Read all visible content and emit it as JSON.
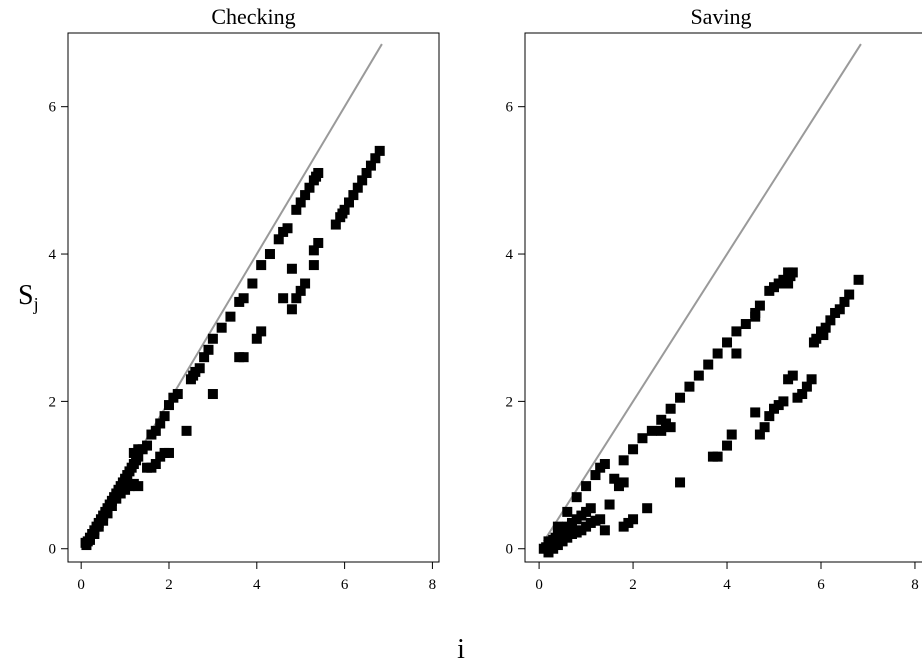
{
  "chart_data": [
    {
      "type": "scatter",
      "title": "Checking",
      "xlabel": "i",
      "ylabel": "S",
      "ylabel_subscript": "j",
      "xlim": [
        -0.3,
        8.15
      ],
      "ylim": [
        -0.18,
        7.0
      ],
      "xticks": [
        0,
        2,
        4,
        6,
        8
      ],
      "yticks": [
        0,
        2,
        4,
        6
      ],
      "reference_line": {
        "x": [
          0.1,
          6.85
        ],
        "y": [
          0.1,
          6.85
        ]
      },
      "series": [
        {
          "points": [
            [
              0.1,
              0.08
            ],
            [
              0.15,
              0.1
            ],
            [
              0.2,
              0.15
            ],
            [
              0.25,
              0.2
            ],
            [
              0.3,
              0.25
            ],
            [
              0.35,
              0.3
            ],
            [
              0.4,
              0.35
            ],
            [
              0.45,
              0.4
            ],
            [
              0.5,
              0.45
            ],
            [
              0.55,
              0.5
            ],
            [
              0.6,
              0.55
            ],
            [
              0.65,
              0.6
            ],
            [
              0.7,
              0.65
            ],
            [
              0.75,
              0.7
            ],
            [
              0.8,
              0.75
            ],
            [
              0.85,
              0.8
            ],
            [
              0.9,
              0.85
            ],
            [
              0.95,
              0.9
            ],
            [
              1.0,
              0.95
            ],
            [
              1.05,
              1.0
            ],
            [
              1.1,
              1.05
            ],
            [
              1.15,
              1.1
            ],
            [
              1.2,
              1.15
            ],
            [
              1.25,
              1.2
            ],
            [
              1.3,
              1.25
            ],
            [
              0.12,
              0.05
            ],
            [
              0.2,
              0.12
            ],
            [
              0.3,
              0.2
            ],
            [
              0.4,
              0.3
            ],
            [
              0.5,
              0.38
            ],
            [
              0.6,
              0.48
            ],
            [
              0.7,
              0.58
            ],
            [
              0.8,
              0.68
            ],
            [
              0.9,
              0.75
            ],
            [
              1.0,
              0.8
            ],
            [
              1.1,
              0.85
            ],
            [
              1.2,
              0.88
            ],
            [
              1.3,
              0.85
            ],
            [
              1.2,
              1.3
            ],
            [
              1.3,
              1.35
            ],
            [
              1.4,
              1.35
            ],
            [
              1.5,
              1.4
            ],
            [
              1.6,
              1.55
            ],
            [
              1.7,
              1.6
            ],
            [
              1.8,
              1.7
            ],
            [
              1.9,
              1.8
            ],
            [
              2.0,
              1.95
            ],
            [
              2.1,
              2.05
            ],
            [
              2.2,
              2.1
            ],
            [
              1.5,
              1.1
            ],
            [
              1.6,
              1.1
            ],
            [
              1.7,
              1.15
            ],
            [
              1.8,
              1.25
            ],
            [
              1.9,
              1.3
            ],
            [
              2.0,
              1.3
            ],
            [
              2.4,
              1.6
            ],
            [
              3.0,
              2.1
            ],
            [
              2.5,
              2.3
            ],
            [
              2.55,
              2.35
            ],
            [
              2.6,
              2.4
            ],
            [
              2.7,
              2.45
            ],
            [
              2.8,
              2.6
            ],
            [
              2.9,
              2.7
            ],
            [
              3.0,
              2.85
            ],
            [
              3.2,
              3.0
            ],
            [
              3.4,
              3.15
            ],
            [
              3.6,
              3.35
            ],
            [
              3.7,
              3.4
            ],
            [
              3.9,
              3.6
            ],
            [
              4.1,
              3.85
            ],
            [
              4.3,
              4.0
            ],
            [
              4.5,
              4.2
            ],
            [
              4.6,
              4.3
            ],
            [
              4.7,
              4.35
            ],
            [
              3.6,
              2.6
            ],
            [
              3.7,
              2.6
            ],
            [
              4.0,
              2.85
            ],
            [
              4.1,
              2.95
            ],
            [
              4.9,
              4.6
            ],
            [
              5.0,
              4.7
            ],
            [
              5.1,
              4.8
            ],
            [
              5.2,
              4.9
            ],
            [
              5.3,
              5.0
            ],
            [
              5.35,
              5.05
            ],
            [
              5.4,
              5.1
            ],
            [
              4.6,
              3.4
            ],
            [
              4.8,
              3.25
            ],
            [
              4.9,
              3.4
            ],
            [
              5.0,
              3.5
            ],
            [
              5.1,
              3.6
            ],
            [
              5.3,
              3.85
            ],
            [
              5.3,
              4.05
            ],
            [
              5.4,
              4.15
            ],
            [
              4.8,
              3.8
            ],
            [
              5.9,
              4.5
            ],
            [
              6.0,
              4.6
            ],
            [
              6.1,
              4.7
            ],
            [
              6.2,
              4.8
            ],
            [
              6.3,
              4.9
            ],
            [
              6.4,
              5.0
            ],
            [
              6.5,
              5.1
            ],
            [
              6.6,
              5.2
            ],
            [
              6.7,
              5.3
            ],
            [
              6.8,
              5.4
            ],
            [
              5.8,
              4.4
            ],
            [
              5.95,
              4.55
            ]
          ]
        }
      ]
    },
    {
      "type": "scatter",
      "title": "Saving",
      "xlabel": "i",
      "ylabel": "",
      "xlim": [
        -0.3,
        8.15
      ],
      "ylim": [
        -0.18,
        7.0
      ],
      "xticks": [
        0,
        2,
        4,
        6,
        8
      ],
      "yticks": [
        0,
        2,
        4,
        6
      ],
      "reference_line": {
        "x": [
          0.1,
          6.85
        ],
        "y": [
          0.1,
          6.85
        ]
      },
      "series": [
        {
          "points": [
            [
              0.1,
              0.0
            ],
            [
              0.15,
              0.02
            ],
            [
              0.2,
              0.05
            ],
            [
              0.25,
              0.08
            ],
            [
              0.3,
              0.12
            ],
            [
              0.35,
              0.15
            ],
            [
              0.4,
              0.2
            ],
            [
              0.5,
              0.25
            ],
            [
              0.6,
              0.3
            ],
            [
              0.7,
              0.35
            ],
            [
              0.8,
              0.4
            ],
            [
              0.9,
              0.45
            ],
            [
              1.0,
              0.5
            ],
            [
              1.1,
              0.55
            ],
            [
              0.2,
              -0.05
            ],
            [
              0.3,
              0.0
            ],
            [
              0.4,
              0.05
            ],
            [
              0.5,
              0.1
            ],
            [
              0.6,
              0.15
            ],
            [
              0.7,
              0.2
            ],
            [
              0.8,
              0.22
            ],
            [
              0.9,
              0.25
            ],
            [
              1.0,
              0.3
            ],
            [
              1.1,
              0.35
            ],
            [
              1.2,
              0.38
            ],
            [
              1.3,
              0.4
            ],
            [
              1.4,
              0.25
            ],
            [
              0.2,
              0.1
            ],
            [
              0.4,
              0.3
            ],
            [
              0.6,
              0.5
            ],
            [
              0.8,
              0.7
            ],
            [
              1.0,
              0.85
            ],
            [
              1.2,
              1.0
            ],
            [
              1.3,
              1.1
            ],
            [
              1.4,
              1.15
            ],
            [
              1.5,
              0.6
            ],
            [
              1.7,
              0.85
            ],
            [
              1.8,
              0.9
            ],
            [
              1.6,
              0.95
            ],
            [
              1.8,
              1.2
            ],
            [
              2.0,
              1.35
            ],
            [
              2.2,
              1.5
            ],
            [
              2.4,
              1.6
            ],
            [
              2.6,
              1.75
            ],
            [
              2.8,
              1.9
            ],
            [
              3.0,
              2.05
            ],
            [
              3.2,
              2.2
            ],
            [
              3.4,
              2.35
            ],
            [
              3.6,
              2.5
            ],
            [
              3.8,
              2.65
            ],
            [
              4.0,
              2.8
            ],
            [
              4.2,
              2.95
            ],
            [
              4.4,
              3.05
            ],
            [
              4.6,
              3.15
            ],
            [
              1.8,
              0.3
            ],
            [
              1.9,
              0.35
            ],
            [
              2.0,
              0.4
            ],
            [
              2.3,
              0.55
            ],
            [
              3.0,
              0.9
            ],
            [
              2.6,
              1.6
            ],
            [
              2.7,
              1.7
            ],
            [
              2.8,
              1.65
            ],
            [
              3.7,
              1.25
            ],
            [
              3.8,
              1.25
            ],
            [
              4.0,
              1.4
            ],
            [
              4.1,
              1.55
            ],
            [
              4.2,
              2.65
            ],
            [
              4.6,
              3.2
            ],
            [
              4.7,
              3.3
            ],
            [
              4.9,
              3.5
            ],
            [
              5.0,
              3.55
            ],
            [
              5.1,
              3.6
            ],
            [
              5.2,
              3.65
            ],
            [
              5.3,
              3.75
            ],
            [
              5.35,
              3.7
            ],
            [
              5.4,
              3.75
            ],
            [
              5.3,
              3.6
            ],
            [
              4.7,
              1.55
            ],
            [
              4.8,
              1.65
            ],
            [
              4.9,
              1.8
            ],
            [
              5.0,
              1.9
            ],
            [
              5.1,
              1.95
            ],
            [
              5.2,
              2.0
            ],
            [
              5.3,
              2.3
            ],
            [
              5.4,
              2.35
            ],
            [
              5.5,
              2.05
            ],
            [
              5.6,
              2.1
            ],
            [
              5.7,
              2.2
            ],
            [
              5.8,
              2.3
            ],
            [
              4.6,
              1.85
            ],
            [
              5.9,
              2.85
            ],
            [
              6.0,
              2.95
            ],
            [
              6.1,
              3.0
            ],
            [
              6.2,
              3.1
            ],
            [
              6.3,
              3.2
            ],
            [
              6.4,
              3.25
            ],
            [
              6.5,
              3.35
            ],
            [
              6.6,
              3.45
            ],
            [
              6.8,
              3.65
            ],
            [
              5.85,
              2.8
            ],
            [
              6.05,
              2.9
            ]
          ]
        }
      ]
    }
  ]
}
